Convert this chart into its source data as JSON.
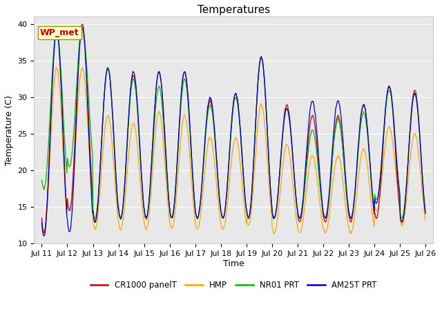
{
  "title": "Temperatures",
  "xlabel": "Time",
  "ylabel": "Temperature (C)",
  "ylim": [
    10,
    41
  ],
  "yticks": [
    10,
    15,
    20,
    25,
    30,
    35,
    40
  ],
  "xtick_labels": [
    "Jul 11",
    "Jul 12",
    "Jul 13",
    "Jul 14",
    "Jul 15",
    "Jul 16",
    "Jul 17",
    "Jul 18",
    "Jul 19",
    "Jul 20",
    "Jul 21",
    "Jul 22",
    "Jul 23",
    "Jul 24",
    "Jul 25",
    "Jul 26"
  ],
  "series": {
    "CR1000_panelT": {
      "color": "#cc0000",
      "label": "CR1000 panelT"
    },
    "HMP": {
      "color": "#ffa500",
      "label": "HMP"
    },
    "NR01_PRT": {
      "color": "#00bb00",
      "label": "NR01 PRT"
    },
    "AM25T_PRT": {
      "color": "#0000cc",
      "label": "AM25T PRT"
    }
  },
  "annotation": {
    "text": "WP_met",
    "color": "#cc0000",
    "bg": "#ffffcc",
    "border": "#999900",
    "fontsize": 9,
    "fontweight": "bold"
  },
  "fig_bg": "#ffffff",
  "plot_bg": "#e8e8e8",
  "grid_color": "#cccccc",
  "title_fontsize": 11,
  "axis_fontsize": 9,
  "tick_fontsize": 8,
  "lw": 0.9,
  "peaks_cr": [
    39.5,
    40.0,
    34.0,
    33.0,
    33.5,
    33.5,
    29.5,
    30.5,
    35.5,
    29.0,
    27.5,
    27.5,
    29.0,
    31.5,
    31.0
  ],
  "troughs_cr": [
    11.5,
    14.5,
    13.0,
    13.5,
    13.5,
    13.5,
    13.5,
    13.5,
    13.5,
    13.5,
    13.0,
    13.0,
    13.0,
    13.5,
    13.0
  ],
  "peaks_hmp": [
    34.0,
    34.0,
    27.5,
    26.5,
    28.0,
    27.5,
    24.5,
    24.5,
    29.0,
    23.5,
    22.0,
    22.0,
    23.0,
    26.0,
    25.0
  ],
  "troughs_hmp": [
    11.5,
    14.5,
    12.0,
    12.0,
    12.0,
    12.0,
    12.0,
    12.0,
    12.5,
    11.5,
    11.5,
    11.5,
    11.5,
    14.5,
    12.5
  ],
  "peaks_nr01": [
    39.0,
    39.5,
    34.0,
    32.5,
    31.5,
    32.5,
    29.0,
    30.0,
    35.5,
    28.5,
    25.5,
    27.0,
    28.0,
    31.0,
    30.5
  ],
  "troughs_nr01": [
    17.5,
    20.5,
    13.5,
    13.5,
    13.5,
    13.5,
    13.5,
    13.5,
    13.5,
    13.5,
    13.5,
    13.5,
    13.5,
    16.0,
    13.5
  ],
  "peaks_am25": [
    39.0,
    39.5,
    34.0,
    33.5,
    33.5,
    33.5,
    30.0,
    30.5,
    35.5,
    28.5,
    29.5,
    29.5,
    29.0,
    31.5,
    30.5
  ],
  "troughs_am25": [
    11.0,
    11.5,
    13.0,
    13.5,
    13.5,
    13.5,
    13.5,
    13.5,
    13.5,
    13.5,
    13.5,
    13.5,
    13.5,
    15.5,
    13.0
  ]
}
